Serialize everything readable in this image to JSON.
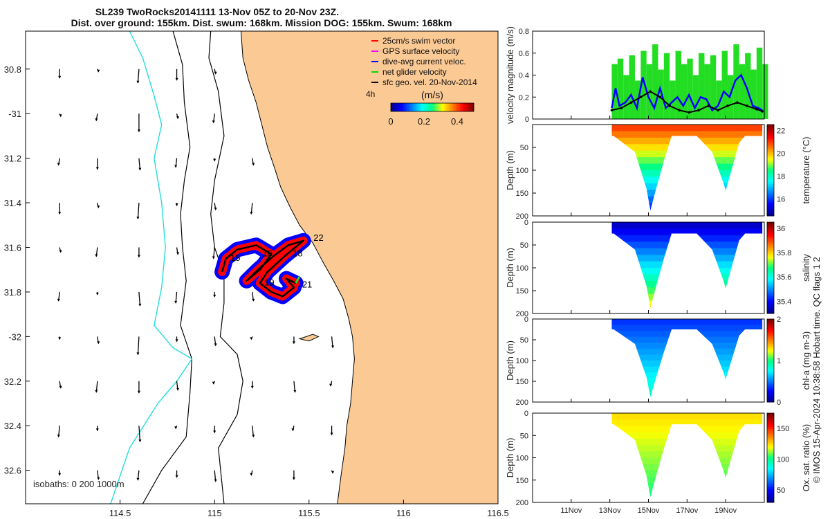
{
  "title_line1": "SL239 TwoRocks20141111 13-Nov 05Z to 20-Nov 23Z.",
  "title_line2": "Dist. over ground: 155km. Dist. swum: 168km. Mission DOG: 155km. Swum: 168km",
  "credit": "© IMOS 15-Apr-2024 10:38:58 Hobart time. QC flags 1  2",
  "colors": {
    "land": "#fbc994",
    "glider_red": "#ff0000",
    "glider_blue": "#0000ff",
    "net_green": "#22dd22",
    "isobath_cyan": "#22dddd",
    "contour": "#000000"
  },
  "chart_data": [
    {
      "type": "map",
      "xlim": [
        114.0,
        116.5
      ],
      "ylim": [
        -32.75,
        -30.63
      ],
      "xticks": [
        114.5,
        115,
        115.5,
        116,
        116.5
      ],
      "xtick_labels": [
        "114.5",
        "115",
        "115.5",
        "116",
        "116.5"
      ],
      "yticks": [
        -30.8,
        -31,
        -31.2,
        -31.4,
        -31.6,
        -31.8,
        -32,
        -32.2,
        -32.4,
        -32.6
      ],
      "ytick_labels": [
        "30.8",
        "-31",
        "31.2",
        "31.4",
        "31.6",
        "31.8",
        "-32",
        "32.2",
        "32.4",
        "32.6"
      ],
      "legend": [
        {
          "label": "25cm/s swim vector",
          "color": "#ff0000"
        },
        {
          "label": "GPS surface velocity",
          "color": "#ff00ff"
        },
        {
          "label": "dive-avg current veloc.",
          "color": "#0000ff"
        },
        {
          "label": "net glider velocity",
          "color": "#00dd00"
        },
        {
          "label": "sfc geo. vel. 20-Nov-2014",
          "color": "#000000"
        }
      ],
      "colorbar": {
        "label": "(m/s)",
        "ticks": [
          "0",
          "0.2",
          "0.4"
        ],
        "range": [
          0,
          0.5
        ]
      },
      "time_label": "4h",
      "isobath_label": "isobaths: 0   200  1000m",
      "day_labels": [
        {
          "text": "15",
          "lon": 115.11,
          "lat": -31.66
        },
        {
          "text": "16",
          "lon": 115.28,
          "lat": -31.64
        },
        {
          "text": "18",
          "lon": 115.44,
          "lat": -31.64
        },
        {
          "text": "22",
          "lon": 115.55,
          "lat": -31.57
        },
        {
          "text": "19",
          "lon": 115.29,
          "lat": -31.77
        },
        {
          "text": "21",
          "lon": 115.49,
          "lat": -31.78
        }
      ],
      "track": [
        [
          115.04,
          -31.71
        ],
        [
          115.06,
          -31.65
        ],
        [
          115.12,
          -31.61
        ],
        [
          115.22,
          -31.59
        ],
        [
          115.3,
          -31.63
        ],
        [
          115.24,
          -31.7
        ],
        [
          115.17,
          -31.75
        ],
        [
          115.23,
          -31.7
        ],
        [
          115.31,
          -31.64
        ],
        [
          115.39,
          -31.59
        ],
        [
          115.47,
          -31.57
        ],
        [
          115.37,
          -31.64
        ],
        [
          115.28,
          -31.71
        ],
        [
          115.24,
          -31.76
        ],
        [
          115.3,
          -31.8
        ],
        [
          115.36,
          -31.82
        ],
        [
          115.42,
          -31.78
        ],
        [
          115.38,
          -31.74
        ],
        [
          115.43,
          -31.76
        ]
      ],
      "coast": [
        [
          115.14,
          -30.63
        ],
        [
          115.15,
          -30.75
        ],
        [
          115.18,
          -30.85
        ],
        [
          115.22,
          -30.95
        ],
        [
          115.25,
          -31.05
        ],
        [
          115.28,
          -31.15
        ],
        [
          115.32,
          -31.25
        ],
        [
          115.35,
          -31.33
        ],
        [
          115.4,
          -31.42
        ],
        [
          115.45,
          -31.5
        ],
        [
          115.52,
          -31.58
        ],
        [
          115.57,
          -31.66
        ],
        [
          115.63,
          -31.75
        ],
        [
          115.68,
          -31.83
        ],
        [
          115.71,
          -31.92
        ],
        [
          115.73,
          -32.0
        ],
        [
          115.74,
          -32.1
        ],
        [
          115.73,
          -32.2
        ],
        [
          115.72,
          -32.3
        ],
        [
          115.7,
          -32.4
        ],
        [
          115.69,
          -32.5
        ],
        [
          115.67,
          -32.62
        ],
        [
          115.65,
          -32.75
        ]
      ],
      "island": [
        [
          115.45,
          -32.01
        ],
        [
          115.52,
          -31.99
        ],
        [
          115.55,
          -32.0
        ],
        [
          115.5,
          -32.02
        ],
        [
          115.45,
          -32.01
        ]
      ],
      "iso200": [
        [
          114.98,
          -30.63
        ],
        [
          114.97,
          -30.75
        ],
        [
          115.02,
          -30.9
        ],
        [
          115.05,
          -31.1
        ],
        [
          115.0,
          -31.3
        ],
        [
          114.98,
          -31.45
        ],
        [
          115.0,
          -31.6
        ],
        [
          115.05,
          -31.72
        ],
        [
          115.05,
          -31.85
        ],
        [
          115.03,
          -32.0
        ],
        [
          115.12,
          -32.08
        ],
        [
          115.15,
          -32.2
        ],
        [
          115.12,
          -32.35
        ],
        [
          115.02,
          -32.5
        ],
        [
          115.05,
          -32.75
        ]
      ],
      "iso1000": [
        [
          114.78,
          -30.63
        ],
        [
          114.83,
          -30.78
        ],
        [
          114.84,
          -30.95
        ],
        [
          114.87,
          -31.15
        ],
        [
          114.84,
          -31.3
        ],
        [
          114.82,
          -31.45
        ],
        [
          114.83,
          -31.6
        ],
        [
          114.85,
          -31.75
        ],
        [
          114.82,
          -31.95
        ],
        [
          114.88,
          -32.1
        ],
        [
          114.87,
          -32.25
        ],
        [
          114.85,
          -32.45
        ],
        [
          114.72,
          -32.6
        ],
        [
          114.62,
          -32.75
        ]
      ],
      "iso0": [
        [
          114.55,
          -30.63
        ],
        [
          114.62,
          -30.75
        ],
        [
          114.68,
          -30.92
        ],
        [
          114.72,
          -31.05
        ],
        [
          114.68,
          -31.2
        ],
        [
          114.72,
          -31.4
        ],
        [
          114.74,
          -31.6
        ],
        [
          114.72,
          -31.78
        ],
        [
          114.68,
          -31.95
        ],
        [
          114.78,
          -32.05
        ],
        [
          114.88,
          -32.1
        ],
        [
          114.8,
          -32.2
        ],
        [
          114.7,
          -32.3
        ],
        [
          114.55,
          -32.5
        ],
        [
          114.45,
          -32.75
        ]
      ]
    },
    {
      "type": "line",
      "ylabel": "velocity magnitude (m/s)",
      "ylim": [
        0,
        0.8
      ],
      "yticks": [
        0,
        0.2,
        0.4,
        0.6,
        0.8
      ],
      "xlim": [
        9.0,
        21.0
      ],
      "series": [
        {
          "name": "net glider velocity",
          "color": "#22dd22",
          "x": [
            13.1,
            13.4,
            13.7,
            14.0,
            14.3,
            14.6,
            14.9,
            15.2,
            15.5,
            15.8,
            16.1,
            16.4,
            16.7,
            17.0,
            17.3,
            17.6,
            17.9,
            18.2,
            18.5,
            18.8,
            19.1,
            19.4,
            19.7,
            20.0,
            20.3,
            20.6,
            20.9
          ],
          "values": [
            0.5,
            0.55,
            0.4,
            0.58,
            0.35,
            0.62,
            0.5,
            0.68,
            0.45,
            0.6,
            0.35,
            0.62,
            0.5,
            0.55,
            0.4,
            0.6,
            0.5,
            0.58,
            0.35,
            0.62,
            0.4,
            0.68,
            0.5,
            0.6,
            0.45,
            0.65,
            0.5
          ]
        },
        {
          "name": "dive-avg current veloc.",
          "color": "#0000ff",
          "x": [
            13.1,
            13.3,
            13.5,
            13.8,
            14.1,
            14.4,
            14.7,
            15.0,
            15.3,
            15.6,
            15.9,
            16.2,
            16.5,
            16.8,
            17.1,
            17.4,
            17.7,
            18.0,
            18.3,
            18.6,
            18.9,
            19.2,
            19.5,
            19.8,
            20.1,
            20.4,
            20.7,
            20.9
          ],
          "values": [
            0.1,
            0.28,
            0.12,
            0.15,
            0.22,
            0.1,
            0.38,
            0.2,
            0.1,
            0.28,
            0.1,
            0.15,
            0.2,
            0.12,
            0.22,
            0.1,
            0.2,
            0.18,
            0.08,
            0.12,
            0.25,
            0.2,
            0.35,
            0.4,
            0.28,
            0.12,
            0.1,
            0.08
          ]
        },
        {
          "name": "sfc geo. vel.",
          "color": "#000000",
          "x": [
            13.1,
            13.6,
            14.1,
            14.6,
            15.1,
            15.6,
            16.1,
            16.6,
            17.1,
            17.6,
            18.1,
            18.6,
            19.1,
            19.6,
            20.1,
            20.6,
            20.9
          ],
          "values": [
            0.08,
            0.1,
            0.15,
            0.2,
            0.25,
            0.2,
            0.12,
            0.08,
            0.06,
            0.08,
            0.12,
            0.08,
            0.12,
            0.15,
            0.12,
            0.09,
            0.07
          ]
        }
      ]
    },
    {
      "type": "heatmap",
      "field": "temperature",
      "colorbar_label": "temperature (°C)",
      "clim": [
        14.5,
        22.5
      ],
      "cticks": [
        "16",
        "18",
        "20",
        "22"
      ],
      "cvals": [
        16,
        18,
        20,
        22
      ],
      "ylabel": "Depth (m)",
      "yticks": [
        "50",
        "100",
        "150",
        "200"
      ],
      "surface_value": 21.0,
      "bottom_value": 15.5
    },
    {
      "type": "heatmap",
      "field": "salinity",
      "colorbar_label": "salinity",
      "clim": [
        35.3,
        36.05
      ],
      "cticks": [
        "35.4",
        "35.6",
        "35.8",
        "36"
      ],
      "cvals": [
        35.4,
        35.6,
        35.8,
        36.0
      ],
      "ylabel": "Depth (m)",
      "yticks": [
        "0",
        "50",
        "100",
        "150",
        "200"
      ],
      "surface_value": 35.35,
      "bottom_value": 35.8
    },
    {
      "type": "heatmap",
      "field": "chl-a",
      "colorbar_label": "chl-a (mg m-3)",
      "clim": [
        0,
        2
      ],
      "cticks": [
        "0",
        "1",
        "2"
      ],
      "cvals": [
        0,
        1,
        2
      ],
      "ylabel": "Depth (m)",
      "yticks": [
        "0",
        "50",
        "100",
        "150",
        "200"
      ],
      "surface_value": 0.35,
      "bottom_value": 0.9
    },
    {
      "type": "heatmap",
      "field": "oxygen",
      "colorbar_label": "Ox. sat. ratio (%)",
      "clim": [
        30,
        175
      ],
      "cticks": [
        "50",
        "100",
        "150"
      ],
      "cvals": [
        50,
        100,
        150
      ],
      "ylabel": "Depth (m)",
      "yticks": [
        "0",
        "50",
        "100",
        "150",
        "200"
      ],
      "surface_value": 125,
      "bottom_value": 102
    }
  ],
  "time_axis": {
    "ticks": [
      11,
      13,
      15,
      17,
      19
    ],
    "labels": [
      "11Nov",
      "13Nov",
      "15Nov",
      "17Nov",
      "19Nov"
    ]
  }
}
